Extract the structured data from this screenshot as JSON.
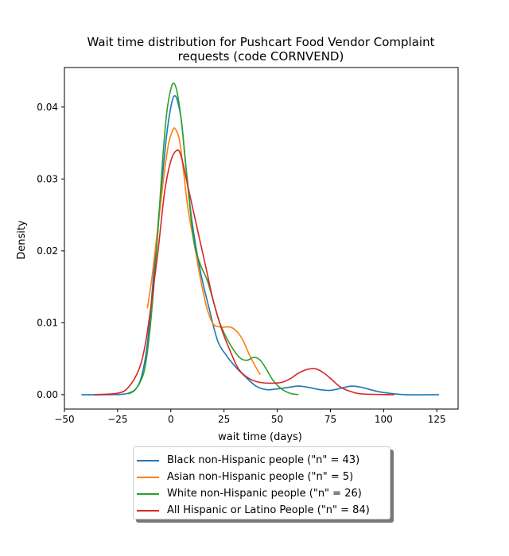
{
  "chart_data": {
    "type": "line",
    "title": "Wait time distribution  for Pushcart Food Vendor Complaint\nrequests (code CORNVEND)",
    "xlabel": "wait time (days)",
    "ylabel": "Density",
    "xlim": [
      -50,
      135
    ],
    "ylim": [
      -0.002,
      0.0455
    ],
    "xticks": [
      -50,
      -25,
      0,
      25,
      50,
      75,
      100,
      125
    ],
    "yticks": [
      0.0,
      0.01,
      0.02,
      0.03,
      0.04
    ],
    "xtick_labels": [
      "−50",
      "−25",
      "0",
      "25",
      "50",
      "75",
      "100",
      "125"
    ],
    "ytick_labels": [
      "0.00",
      "0.01",
      "0.02",
      "0.03",
      "0.04"
    ],
    "grid": false,
    "legend_position": "bottom-center (outside plot)",
    "series": [
      {
        "name": "Black non-Hispanic people (\"n\" = 43)",
        "color": "#1f77b4",
        "points": [
          [
            -42,
            0.0
          ],
          [
            -30,
            0.0
          ],
          [
            -20,
            0.0002
          ],
          [
            -15,
            0.0015
          ],
          [
            -12,
            0.005
          ],
          [
            -10,
            0.01
          ],
          [
            -8,
            0.017
          ],
          [
            -5,
            0.027
          ],
          [
            -2,
            0.036
          ],
          [
            0,
            0.04
          ],
          [
            1.5,
            0.0415
          ],
          [
            3,
            0.041
          ],
          [
            5,
            0.038
          ],
          [
            7,
            0.032
          ],
          [
            10,
            0.024
          ],
          [
            14,
            0.017
          ],
          [
            18,
            0.012
          ],
          [
            22,
            0.0075
          ],
          [
            26,
            0.0055
          ],
          [
            30,
            0.004
          ],
          [
            35,
            0.0025
          ],
          [
            40,
            0.0012
          ],
          [
            45,
            0.0007
          ],
          [
            50,
            0.0008
          ],
          [
            55,
            0.001
          ],
          [
            60,
            0.0012
          ],
          [
            65,
            0.001
          ],
          [
            70,
            0.0007
          ],
          [
            75,
            0.0006
          ],
          [
            80,
            0.0009
          ],
          [
            85,
            0.0012
          ],
          [
            90,
            0.001
          ],
          [
            95,
            0.0006
          ],
          [
            100,
            0.0003
          ],
          [
            110,
            0.0
          ],
          [
            126,
            0.0
          ]
        ]
      },
      {
        "name": "Asian non-Hispanic people (\"n\" = 5)",
        "color": "#ff7f0e",
        "points": [
          [
            -11,
            0.012
          ],
          [
            -9,
            0.016
          ],
          [
            -7,
            0.021
          ],
          [
            -5,
            0.026
          ],
          [
            -3,
            0.031
          ],
          [
            -1,
            0.035
          ],
          [
            1,
            0.0368
          ],
          [
            2,
            0.037
          ],
          [
            4,
            0.0355
          ],
          [
            6,
            0.031
          ],
          [
            8,
            0.026
          ],
          [
            11,
            0.021
          ],
          [
            14,
            0.016
          ],
          [
            17,
            0.012
          ],
          [
            20,
            0.0098
          ],
          [
            24,
            0.0094
          ],
          [
            28,
            0.0094
          ],
          [
            31,
            0.0088
          ],
          [
            34,
            0.0075
          ],
          [
            37,
            0.0055
          ],
          [
            40,
            0.0038
          ],
          [
            42,
            0.0028
          ]
        ]
      },
      {
        "name": "White non-Hispanic people (\"n\" = 26)",
        "color": "#2ca02c",
        "points": [
          [
            -20,
            0.0001
          ],
          [
            -17,
            0.0006
          ],
          [
            -14,
            0.002
          ],
          [
            -12,
            0.004
          ],
          [
            -10,
            0.0085
          ],
          [
            -8,
            0.015
          ],
          [
            -6,
            0.023
          ],
          [
            -4,
            0.032
          ],
          [
            -2,
            0.039
          ],
          [
            0,
            0.0425
          ],
          [
            1.5,
            0.0433
          ],
          [
            3,
            0.042
          ],
          [
            5,
            0.038
          ],
          [
            7,
            0.032
          ],
          [
            9,
            0.026
          ],
          [
            11,
            0.021
          ],
          [
            14,
            0.018
          ],
          [
            17,
            0.016
          ],
          [
            20,
            0.013
          ],
          [
            23,
            0.01
          ],
          [
            26,
            0.008
          ],
          [
            30,
            0.006
          ],
          [
            33,
            0.005
          ],
          [
            36,
            0.0048
          ],
          [
            39,
            0.0052
          ],
          [
            42,
            0.0048
          ],
          [
            45,
            0.0035
          ],
          [
            48,
            0.002
          ],
          [
            52,
            0.0008
          ],
          [
            56,
            0.0002
          ],
          [
            60,
            0.0
          ]
        ]
      },
      {
        "name": "All Hispanic or Latino People (\"n\" = 84)",
        "color": "#d62728",
        "points": [
          [
            -36,
            0.0
          ],
          [
            -25,
            0.0002
          ],
          [
            -20,
            0.001
          ],
          [
            -15,
            0.0035
          ],
          [
            -12,
            0.007
          ],
          [
            -9,
            0.013
          ],
          [
            -6,
            0.02
          ],
          [
            -3,
            0.028
          ],
          [
            0,
            0.0325
          ],
          [
            3,
            0.034
          ],
          [
            5,
            0.033
          ],
          [
            8,
            0.029
          ],
          [
            11,
            0.025
          ],
          [
            14,
            0.021
          ],
          [
            17,
            0.017
          ],
          [
            20,
            0.013
          ],
          [
            24,
            0.009
          ],
          [
            28,
            0.006
          ],
          [
            32,
            0.0035
          ],
          [
            37,
            0.0022
          ],
          [
            42,
            0.0017
          ],
          [
            47,
            0.0016
          ],
          [
            52,
            0.0017
          ],
          [
            56,
            0.0022
          ],
          [
            60,
            0.003
          ],
          [
            64,
            0.0035
          ],
          [
            68,
            0.0036
          ],
          [
            72,
            0.003
          ],
          [
            76,
            0.002
          ],
          [
            80,
            0.001
          ],
          [
            85,
            0.0004
          ],
          [
            90,
            0.0001
          ],
          [
            105,
            0.0
          ]
        ]
      }
    ]
  }
}
